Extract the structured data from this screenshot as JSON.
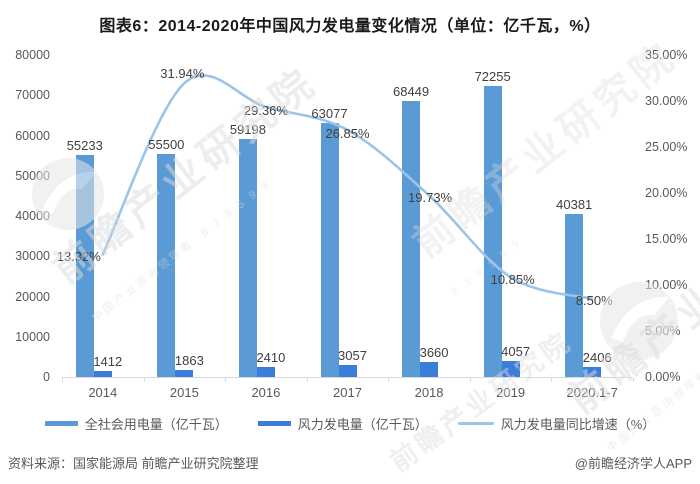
{
  "title": "图表6：2014-2020年中国风力发电量变化情况（单位：亿千瓦，%）",
  "chart_data": {
    "type": "bar+line combo",
    "categories": [
      "2014",
      "2015",
      "2016",
      "2017",
      "2018",
      "2019",
      "2020.1-7"
    ],
    "series": [
      {
        "name": "全社会用电量（亿千瓦）",
        "type": "bar",
        "axis": "left",
        "color": "#5B9BD5",
        "values": [
          55233,
          55500,
          59198,
          63077,
          68449,
          72255,
          40381
        ],
        "labels": [
          "55233",
          "55500",
          "59198",
          "63077",
          "68449",
          "72255",
          "40381"
        ]
      },
      {
        "name": "风力发电量（亿千瓦）",
        "type": "bar",
        "axis": "left",
        "color": "#3B7DDB",
        "values": [
          1412,
          1863,
          2410,
          3057,
          3660,
          4057,
          2406
        ],
        "labels": [
          "1412",
          "1863",
          "2410",
          "3057",
          "3660",
          "4057",
          "2406"
        ]
      },
      {
        "name": "风力发电量同比增速（%）",
        "type": "line",
        "axis": "right",
        "color": "#9DC3E6",
        "values": [
          13.32,
          31.94,
          29.36,
          26.85,
          19.73,
          10.85,
          8.5
        ],
        "labels": [
          "13.32%",
          "31.94%",
          "29.36%",
          "26.85%",
          "19.73%",
          "10.85%",
          "8.50%"
        ]
      }
    ],
    "left_axis": {
      "min": 0,
      "max": 80000,
      "step": 10000,
      "ticks": [
        "0",
        "10000",
        "20000",
        "30000",
        "40000",
        "50000",
        "60000",
        "70000",
        "80000"
      ]
    },
    "right_axis": {
      "min": 0,
      "max": 35,
      "step": 5,
      "ticks": [
        "0.00%",
        "5.00%",
        "10.00%",
        "15.00%",
        "20.00%",
        "25.00%",
        "30.00%",
        "35.00%"
      ]
    },
    "grid": false,
    "legend_position": "bottom"
  },
  "footer": {
    "source": "资料来源：国家能源局  前瞻产业研究院整理",
    "credit": "@前瞻经济学人APP"
  },
  "watermark": {
    "brand": "前瞻产业研究院",
    "tagline": "中国产业咨询领导者",
    "digits": "8 3 9 5 9 9"
  },
  "colors": {
    "bar_total": "#5B9BD5",
    "bar_wind": "#3B7DDB",
    "line_growth": "#9DC3E6",
    "axis_text": "#595959",
    "axis_line": "#d9d9d9",
    "label_text": "#404040"
  }
}
